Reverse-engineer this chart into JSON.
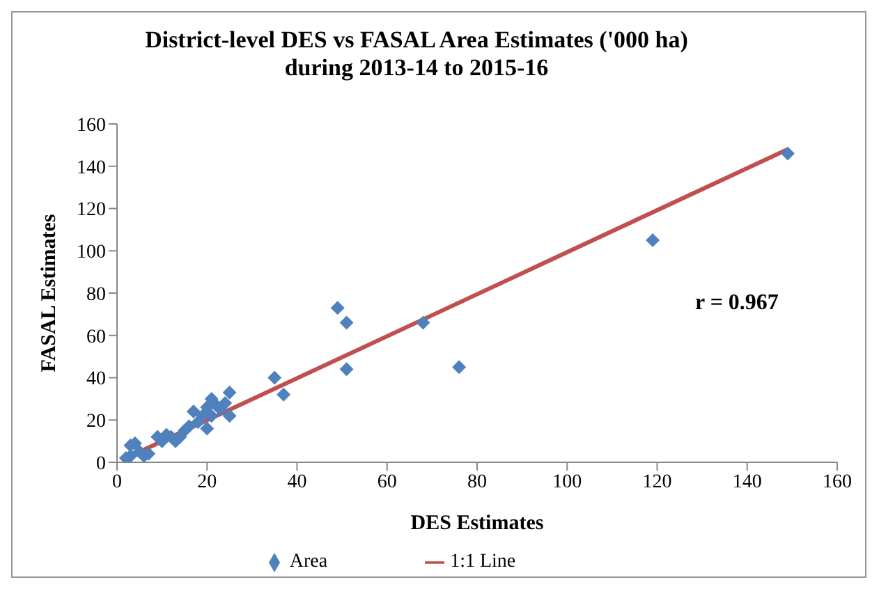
{
  "chart_data": {
    "type": "scatter",
    "title": "District-level DES vs FASAL Area Estimates ('000 ha) during 2013-14 to 2015-16",
    "xlabel": "DES Estimates",
    "ylabel": "FASAL Estimates",
    "xlim": [
      0,
      160
    ],
    "xticks": [
      0,
      20,
      40,
      60,
      80,
      100,
      120,
      140,
      160
    ],
    "ylim": [
      0,
      160
    ],
    "yticks": [
      0,
      20,
      40,
      60,
      80,
      100,
      120,
      140,
      160
    ],
    "grid": false,
    "legend": "bottom",
    "annotations": [
      "r = 0.967"
    ],
    "series": [
      {
        "name": "Area",
        "marker": "diamond",
        "color": "#4f81bd",
        "x": [
          2,
          3,
          3,
          4,
          5,
          6,
          7,
          9,
          10,
          11,
          12,
          13,
          14,
          15,
          16,
          17,
          18,
          19,
          20,
          20,
          21,
          21,
          22,
          23,
          24,
          25,
          25,
          35,
          37,
          49,
          51,
          51,
          68,
          76,
          119,
          149
        ],
        "values": [
          2,
          3,
          8,
          9,
          5,
          3,
          4,
          12,
          10,
          13,
          12,
          10,
          12,
          15,
          17,
          24,
          19,
          22,
          16,
          26,
          30,
          22,
          27,
          25,
          28,
          33,
          22,
          40,
          32,
          73,
          66,
          44,
          66,
          45,
          105,
          146
        ]
      },
      {
        "name": "1:1 Line",
        "type": "line",
        "color": "#c0504d",
        "x": [
          2,
          149
        ],
        "values": [
          2,
          148
        ]
      }
    ]
  }
}
